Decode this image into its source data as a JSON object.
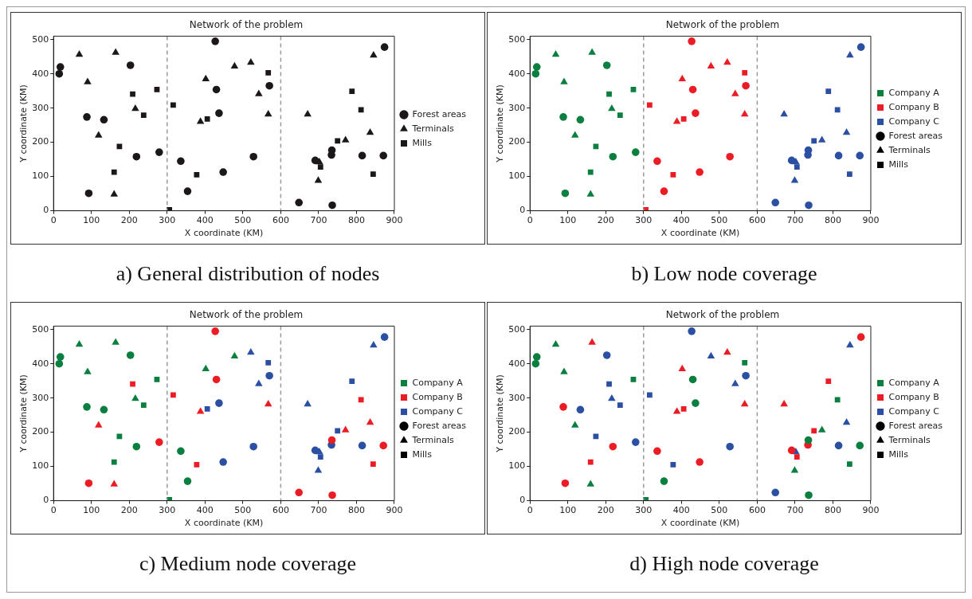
{
  "chart_data": [
    {
      "type": "scatter",
      "title": "Network of the problem",
      "xlabel": "X coordinate (KM)",
      "ylabel": "Y coordinate (KM)",
      "xlim": [
        0,
        900
      ],
      "ylim": [
        0,
        510
      ],
      "xticks": [
        0,
        100,
        200,
        300,
        400,
        500,
        600,
        700,
        800,
        900
      ],
      "yticks": [
        0,
        100,
        200,
        300,
        400,
        500
      ],
      "legend": "right",
      "ref_lines": [
        {
          "axis": "x",
          "value": 300,
          "color": "#999999",
          "line_style": "dashed"
        },
        {
          "axis": "x",
          "value": 600,
          "color": "#999999",
          "line_style": "dashed"
        }
      ],
      "annotations": [
        "a) General distribution of nodes"
      ],
      "series": [
        {
          "name": "Forest areas",
          "color": "#1c1718",
          "marker": "circle",
          "x": [
            15,
            18,
            203,
            88,
            133,
            93,
            219,
            279,
            427,
            430,
            437,
            570,
            528,
            336,
            448,
            354,
            874,
            735,
            734,
            691,
            815,
            871,
            648,
            736
          ],
          "values": [
            400,
            420,
            425,
            274,
            266,
            51,
            158,
            171,
            495,
            354,
            285,
            365,
            158,
            145,
            113,
            57,
            478,
            177,
            163,
            147,
            161,
            161,
            24,
            16
          ]
        },
        {
          "name": "Terminals",
          "color": "#1c1718",
          "marker": "triangle",
          "x": [
            68,
            164,
            90,
            216,
            119,
            160,
            402,
            478,
            521,
            542,
            567,
            388,
            845,
            671,
            836,
            771,
            702,
            699
          ],
          "values": [
            456,
            462,
            376,
            298,
            220,
            48,
            385,
            422,
            433,
            341,
            282,
            260,
            454,
            282,
            228,
            206,
            142,
            88
          ]
        },
        {
          "name": "Mills",
          "color": "#1c1718",
          "marker": "square",
          "x": [
            209,
            273,
            238,
            174,
            160,
            567,
            316,
            406,
            378,
            306,
            788,
            812,
            750,
            705,
            844
          ],
          "values": [
            341,
            354,
            279,
            188,
            113,
            403,
            309,
            268,
            105,
            3,
            349,
            295,
            204,
            128,
            107
          ]
        }
      ]
    },
    {
      "type": "scatter",
      "title": "Network of the problem",
      "xlabel": "X coordinate (KM)",
      "ylabel": "Y coordinate (KM)",
      "xlim": [
        0,
        900
      ],
      "ylim": [
        0,
        510
      ],
      "xticks": [
        0,
        100,
        200,
        300,
        400,
        500,
        600,
        700,
        800,
        900
      ],
      "yticks": [
        0,
        100,
        200,
        300,
        400,
        500
      ],
      "legend": "right",
      "ref_lines": [
        {
          "axis": "x",
          "value": 300,
          "color": "#999999",
          "line_style": "dashed"
        },
        {
          "axis": "x",
          "value": 600,
          "color": "#999999",
          "line_style": "dashed"
        }
      ],
      "annotations": [
        "b) Low node coverage"
      ],
      "series": [
        {
          "color": "#0a7f3f",
          "marker": "circle",
          "x": [
            15,
            18,
            203,
            88,
            133,
            93,
            219,
            279
          ],
          "values": [
            400,
            420,
            425,
            274,
            266,
            51,
            158,
            171
          ]
        },
        {
          "color": "#0a7f3f",
          "marker": "triangle",
          "x": [
            68,
            164,
            90,
            216,
            119,
            160
          ],
          "values": [
            456,
            462,
            376,
            298,
            220,
            48
          ]
        },
        {
          "color": "#0a7f3f",
          "marker": "square",
          "x": [
            209,
            273,
            238,
            174,
            160
          ],
          "values": [
            341,
            354,
            279,
            188,
            113
          ]
        },
        {
          "color": "#ec1c24",
          "marker": "circle",
          "x": [
            427,
            430,
            437,
            570,
            528,
            336,
            448,
            354
          ],
          "values": [
            495,
            354,
            285,
            365,
            158,
            145,
            113,
            57
          ]
        },
        {
          "color": "#ec1c24",
          "marker": "triangle",
          "x": [
            402,
            478,
            521,
            542,
            567,
            388
          ],
          "values": [
            385,
            422,
            433,
            341,
            282,
            260
          ]
        },
        {
          "color": "#ec1c24",
          "marker": "square",
          "x": [
            567,
            316,
            406,
            378,
            306
          ],
          "values": [
            403,
            309,
            268,
            105,
            3
          ]
        },
        {
          "color": "#2b4fa2",
          "marker": "circle",
          "x": [
            874,
            735,
            734,
            691,
            815,
            871,
            648,
            736
          ],
          "values": [
            478,
            177,
            163,
            147,
            161,
            161,
            24,
            16
          ]
        },
        {
          "color": "#2b4fa2",
          "marker": "triangle",
          "x": [
            845,
            671,
            836,
            771,
            702,
            699
          ],
          "values": [
            454,
            282,
            228,
            206,
            142,
            88
          ]
        },
        {
          "color": "#2b4fa2",
          "marker": "square",
          "x": [
            788,
            812,
            750,
            705,
            844
          ],
          "values": [
            349,
            295,
            204,
            128,
            107
          ]
        },
        {
          "name": "Company A",
          "color": "#0a7f3f"
        },
        {
          "name": "Company B",
          "color": "#ec1c24"
        },
        {
          "name": "Company C",
          "color": "#2b4fa2"
        },
        {
          "name": "Forest areas",
          "color": "#000000",
          "marker": "circle"
        },
        {
          "name": "Terminals",
          "color": "#000000",
          "marker": "triangle"
        },
        {
          "name": "Mills",
          "color": "#000000",
          "marker": "square"
        }
      ]
    },
    {
      "type": "scatter",
      "title": "Network of the problem",
      "xlabel": "X coordinate (KM)",
      "ylabel": "Y coordinate (KM)",
      "xlim": [
        0,
        900
      ],
      "ylim": [
        0,
        510
      ],
      "xticks": [
        0,
        100,
        200,
        300,
        400,
        500,
        600,
        700,
        800,
        900
      ],
      "yticks": [
        0,
        100,
        200,
        300,
        400,
        500
      ],
      "legend": "right",
      "ref_lines": [
        {
          "axis": "x",
          "value": 300,
          "color": "#999999",
          "line_style": "dashed"
        },
        {
          "axis": "x",
          "value": 600,
          "color": "#999999",
          "line_style": "dashed"
        }
      ],
      "annotations": [
        "c) Medium node coverage"
      ],
      "series": [
        {
          "color": "#0a7f3f",
          "marker": "circle",
          "x": [
            15,
            18,
            203,
            88,
            133,
            219,
            336,
            354
          ],
          "values": [
            400,
            420,
            425,
            274,
            266,
            158,
            145,
            57
          ]
        },
        {
          "color": "#0a7f3f",
          "marker": "triangle",
          "x": [
            68,
            164,
            90,
            216,
            402,
            478
          ],
          "values": [
            456,
            462,
            376,
            298,
            385,
            422
          ]
        },
        {
          "color": "#0a7f3f",
          "marker": "square",
          "x": [
            273,
            238,
            174,
            160,
            306
          ],
          "values": [
            354,
            279,
            188,
            113,
            3
          ]
        },
        {
          "color": "#ec1c24",
          "marker": "circle",
          "x": [
            93,
            279,
            427,
            430,
            648,
            736,
            735,
            871
          ],
          "values": [
            51,
            171,
            495,
            354,
            24,
            16,
            177,
            161
          ]
        },
        {
          "color": "#ec1c24",
          "marker": "triangle",
          "x": [
            119,
            160,
            388,
            567,
            771,
            836
          ],
          "values": [
            220,
            48,
            260,
            282,
            206,
            228
          ]
        },
        {
          "color": "#ec1c24",
          "marker": "square",
          "x": [
            209,
            316,
            378,
            812,
            844
          ],
          "values": [
            341,
            309,
            105,
            295,
            107
          ]
        },
        {
          "color": "#2b4fa2",
          "marker": "circle",
          "x": [
            437,
            448,
            528,
            570,
            874,
            734,
            691,
            815
          ],
          "values": [
            285,
            113,
            158,
            365,
            478,
            163,
            147,
            161
          ]
        },
        {
          "color": "#2b4fa2",
          "marker": "triangle",
          "x": [
            521,
            542,
            845,
            671,
            702,
            699
          ],
          "values": [
            433,
            341,
            454,
            282,
            142,
            88
          ]
        },
        {
          "color": "#2b4fa2",
          "marker": "square",
          "x": [
            567,
            406,
            788,
            750,
            705
          ],
          "values": [
            403,
            268,
            349,
            204,
            128
          ]
        },
        {
          "name": "Company A",
          "color": "#0a7f3f"
        },
        {
          "name": "Company B",
          "color": "#ec1c24"
        },
        {
          "name": "Company C",
          "color": "#2b4fa2"
        },
        {
          "name": "Forest areas",
          "color": "#000000",
          "marker": "circle"
        },
        {
          "name": "Terminals",
          "color": "#000000",
          "marker": "triangle"
        },
        {
          "name": "Mills",
          "color": "#000000",
          "marker": "square"
        }
      ]
    },
    {
      "type": "scatter",
      "title": "Network of the problem",
      "xlabel": "X coordinate (KM)",
      "ylabel": "Y coordinate (KM)",
      "xlim": [
        0,
        900
      ],
      "ylim": [
        0,
        510
      ],
      "xticks": [
        0,
        100,
        200,
        300,
        400,
        500,
        600,
        700,
        800,
        900
      ],
      "yticks": [
        0,
        100,
        200,
        300,
        400,
        500
      ],
      "legend": "right",
      "ref_lines": [
        {
          "axis": "x",
          "value": 300,
          "color": "#999999",
          "line_style": "dashed"
        },
        {
          "axis": "x",
          "value": 600,
          "color": "#999999",
          "line_style": "dashed"
        }
      ],
      "annotations": [
        "d) High node coverage"
      ],
      "series": [
        {
          "color": "#0a7f3f",
          "marker": "circle",
          "x": [
            15,
            18,
            430,
            437,
            354,
            735,
            871,
            736
          ],
          "values": [
            400,
            420,
            354,
            285,
            57,
            177,
            161,
            16
          ]
        },
        {
          "color": "#0a7f3f",
          "marker": "triangle",
          "x": [
            68,
            90,
            119,
            160,
            771,
            699
          ],
          "values": [
            456,
            376,
            220,
            48,
            206,
            88
          ]
        },
        {
          "color": "#0a7f3f",
          "marker": "square",
          "x": [
            273,
            567,
            306,
            812,
            844
          ],
          "values": [
            354,
            403,
            3,
            295,
            107
          ]
        },
        {
          "color": "#ec1c24",
          "marker": "circle",
          "x": [
            88,
            219,
            93,
            336,
            448,
            874,
            691,
            734
          ],
          "values": [
            274,
            158,
            51,
            145,
            113,
            478,
            147,
            163
          ]
        },
        {
          "color": "#ec1c24",
          "marker": "triangle",
          "x": [
            164,
            402,
            521,
            388,
            567,
            671
          ],
          "values": [
            462,
            385,
            433,
            260,
            282,
            282
          ]
        },
        {
          "color": "#ec1c24",
          "marker": "square",
          "x": [
            160,
            406,
            788,
            750,
            705
          ],
          "values": [
            113,
            268,
            349,
            204,
            128
          ]
        },
        {
          "color": "#2b4fa2",
          "marker": "circle",
          "x": [
            203,
            133,
            279,
            427,
            570,
            528,
            648,
            815
          ],
          "values": [
            425,
            266,
            171,
            495,
            365,
            158,
            24,
            161
          ]
        },
        {
          "color": "#2b4fa2",
          "marker": "triangle",
          "x": [
            216,
            478,
            542,
            845,
            702,
            836
          ],
          "values": [
            298,
            422,
            341,
            454,
            142,
            228
          ]
        },
        {
          "color": "#2b4fa2",
          "marker": "square",
          "x": [
            209,
            238,
            174,
            316,
            378
          ],
          "values": [
            341,
            279,
            188,
            309,
            105
          ]
        },
        {
          "name": "Company A",
          "color": "#0a7f3f"
        },
        {
          "name": "Company B",
          "color": "#ec1c24"
        },
        {
          "name": "Company C",
          "color": "#2b4fa2"
        },
        {
          "name": "Forest areas",
          "color": "#000000",
          "marker": "circle"
        },
        {
          "name": "Terminals",
          "color": "#000000",
          "marker": "triangle"
        },
        {
          "name": "Mills",
          "color": "#000000",
          "marker": "square"
        }
      ]
    }
  ]
}
